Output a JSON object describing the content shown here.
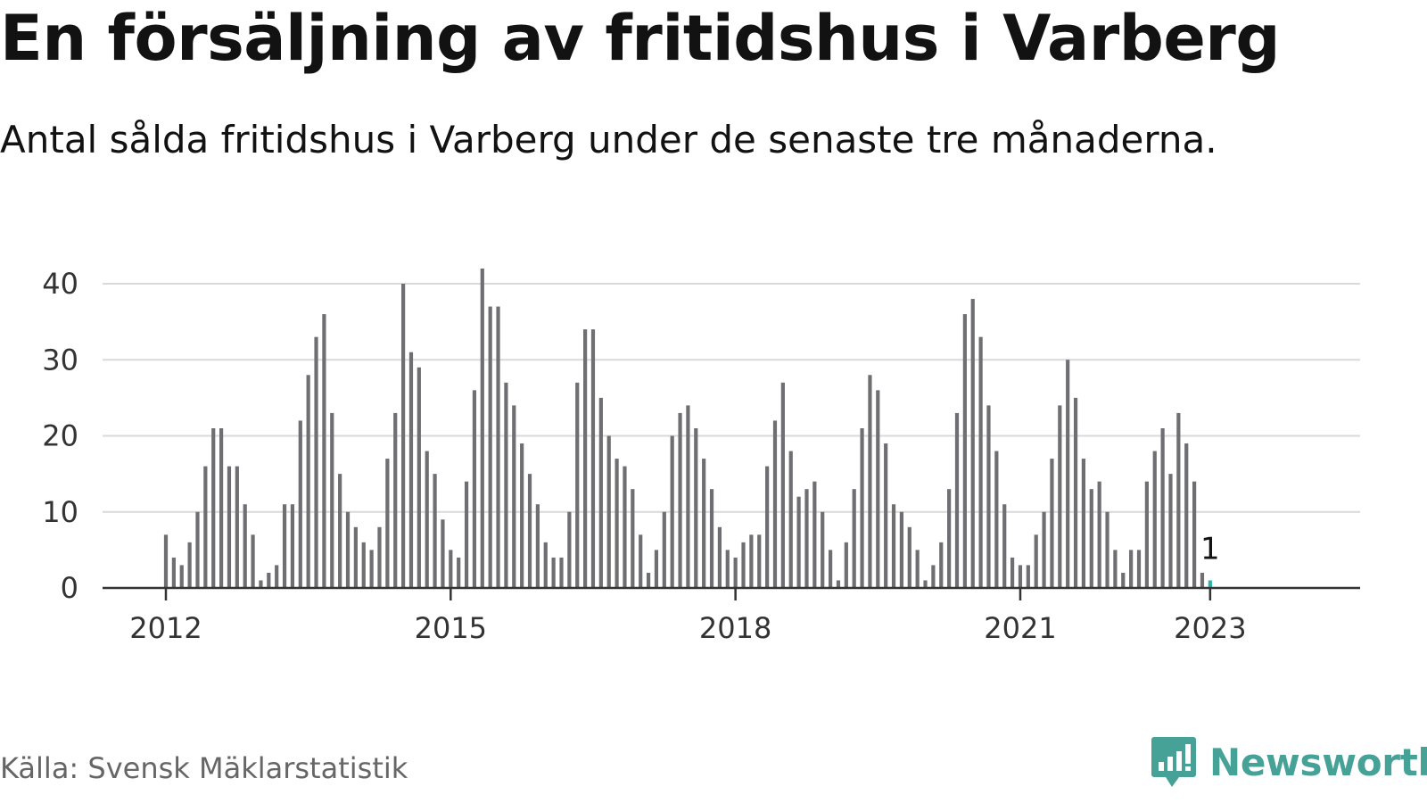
{
  "title": "En försäljning av fritidshus i Varberg",
  "subtitle": "Antal sålda fritidshus i Varberg under de senaste tre månaderna.",
  "source": "Källa: Svensk Mäklarstatistik",
  "brand": {
    "name": "Newsworthy",
    "icon": "newsworthy-logo-icon",
    "color": "#46a197"
  },
  "colors": {
    "bar": "#6e6e73",
    "highlight": "#2bb5a8",
    "grid": "#d9d9d9",
    "axis": "#333333"
  },
  "chart_data": {
    "type": "bar",
    "x_start": "2012-01",
    "x_interval": "month",
    "ylim": [
      0,
      42
    ],
    "yticks": [
      0,
      10,
      20,
      30,
      40
    ],
    "xticks": [
      {
        "label": "2012",
        "date": "2012-01"
      },
      {
        "label": "2015",
        "date": "2015-01"
      },
      {
        "label": "2018",
        "date": "2018-01"
      },
      {
        "label": "2021",
        "date": "2021-01"
      },
      {
        "label": "2023",
        "date": "2023-01"
      }
    ],
    "grid": true,
    "values": [
      7,
      4,
      3,
      6,
      10,
      16,
      21,
      21,
      16,
      16,
      11,
      7,
      1,
      2,
      3,
      11,
      11,
      22,
      28,
      33,
      36,
      23,
      15,
      10,
      8,
      6,
      5,
      8,
      17,
      23,
      40,
      31,
      29,
      18,
      15,
      9,
      5,
      4,
      14,
      26,
      42,
      37,
      37,
      27,
      24,
      19,
      15,
      11,
      6,
      4,
      4,
      10,
      27,
      34,
      34,
      25,
      20,
      17,
      16,
      13,
      7,
      2,
      5,
      10,
      20,
      23,
      24,
      21,
      17,
      13,
      8,
      5,
      4,
      6,
      7,
      7,
      16,
      22,
      27,
      18,
      12,
      13,
      14,
      10,
      5,
      1,
      6,
      13,
      21,
      28,
      26,
      19,
      11,
      10,
      8,
      5,
      1,
      3,
      6,
      13,
      23,
      36,
      38,
      33,
      24,
      18,
      11,
      4,
      3,
      3,
      7,
      10,
      17,
      24,
      30,
      25,
      17,
      13,
      14,
      10,
      5,
      2,
      5,
      5,
      14,
      18,
      21,
      15,
      23,
      19,
      14,
      2,
      1
    ],
    "highlight_last": true,
    "last_label": "1"
  }
}
